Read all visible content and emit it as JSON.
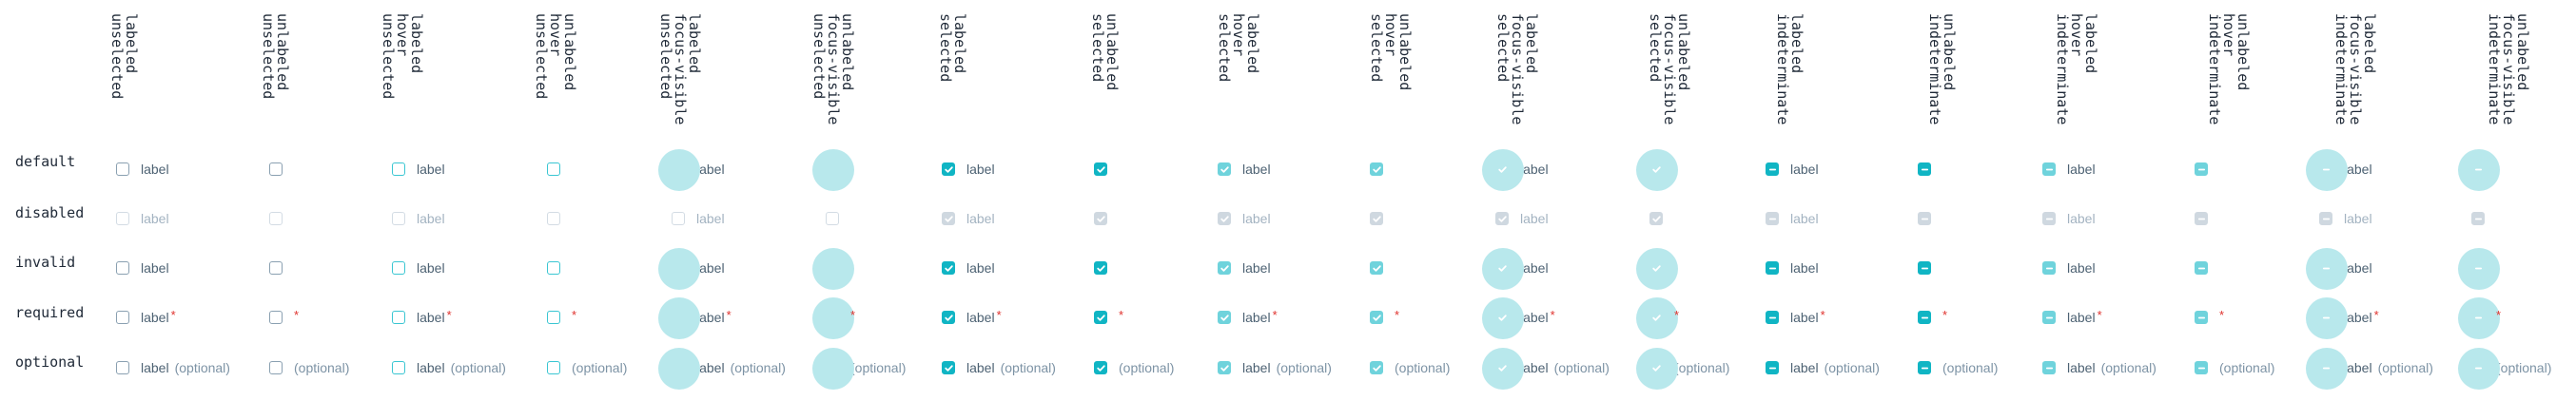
{
  "columns": [
    {
      "label": "labeled\nunselected"
    },
    {
      "label": "unlabeled\nunselected"
    },
    {
      "label": "labeled\nhover\nunselected"
    },
    {
      "label": "unlabeled\nhover\nunselected"
    },
    {
      "label": "labeled\nfocus-visible\nunselected"
    },
    {
      "label": "unlabeled\nfocus-visible\nunselected"
    },
    {
      "label": "labeled\nselected"
    },
    {
      "label": "unlabeled\nselected"
    },
    {
      "label": "labeled\nhover\nselected"
    },
    {
      "label": "unlabeled\nhover\nselected"
    },
    {
      "label": "labeled\nfocus-visible\nselected"
    },
    {
      "label": "unlabeled\nfocus-visible\nselected"
    },
    {
      "label": "labeled\nindeterminate"
    },
    {
      "label": "unlabeled\nindeterminate"
    },
    {
      "label": "labeled\nhover\nindeterminate"
    },
    {
      "label": "unlabeled\nhover\nindeterminate"
    },
    {
      "label": "labeled\nfocus-visible\nindeterminate"
    },
    {
      "label": "unlabeled\nfocus-visible\nindeterminate"
    }
  ],
  "rows": [
    {
      "label": "default"
    },
    {
      "label": "disabled"
    },
    {
      "label": "invalid"
    },
    {
      "label": "required"
    },
    {
      "label": "optional"
    }
  ],
  "checkbox_label": "label",
  "required_marker": "*",
  "optional_text": "(optional)",
  "colors": {
    "accent": "#10b5c4",
    "accent_hover": "#6fd3dc",
    "focus_ring": "#b8e8ec",
    "border": "#8aa0b1",
    "disabled": "#cfd8e0",
    "label_text": "#4d6273",
    "required": "#e0322e"
  },
  "icons": {
    "selected": "check-icon",
    "indeterminate": "minus-icon"
  }
}
